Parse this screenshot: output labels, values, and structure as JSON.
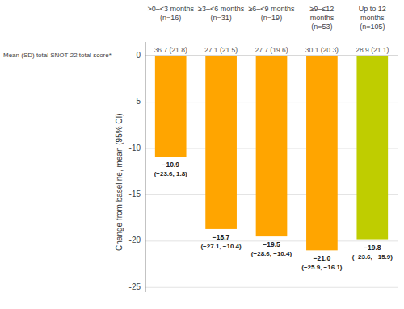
{
  "chart_data": {
    "type": "bar",
    "categories": [
      ">0–<3 months\n(n=16)",
      "≥3–<6 months\n(n=31)",
      "≥6–<9 months\n(n=19)",
      "≥9–≤12\nmonths\n(n=53)",
      "Up to 12\nmonths\n(n=105)"
    ],
    "values": [
      -10.9,
      -18.7,
      -19.5,
      -21.0,
      -19.8
    ],
    "value_labels": [
      "−10.9",
      "−18.7",
      "−19.5",
      "−21.0",
      "−19.8"
    ],
    "ci_labels": [
      "(−23.6, 1.8)",
      "(−27.1, −10.4)",
      "(−28.6, −10.4)",
      "(−25.9, −16.1)",
      "(−23.6, −15.9)"
    ],
    "colors": [
      "#FFA500",
      "#FFA500",
      "#FFA500",
      "#FFA500",
      "#BFCD00"
    ],
    "data_labels": true,
    "ylabel": "Change from baseline, mean (95% CI)",
    "ylim": [
      -25.5,
      1.5
    ],
    "yticks": [
      0,
      -5,
      -10,
      -15,
      -20,
      -25
    ],
    "grid": true,
    "baseline_title": "Mean (SD) total SNOT-22 total score*",
    "baseline_labels": [
      "36.7 (21.8)",
      "27.1 (21.5)",
      "27.7 (19.6)",
      "30.1 (20.3)",
      "28.9 (21.1)"
    ]
  }
}
